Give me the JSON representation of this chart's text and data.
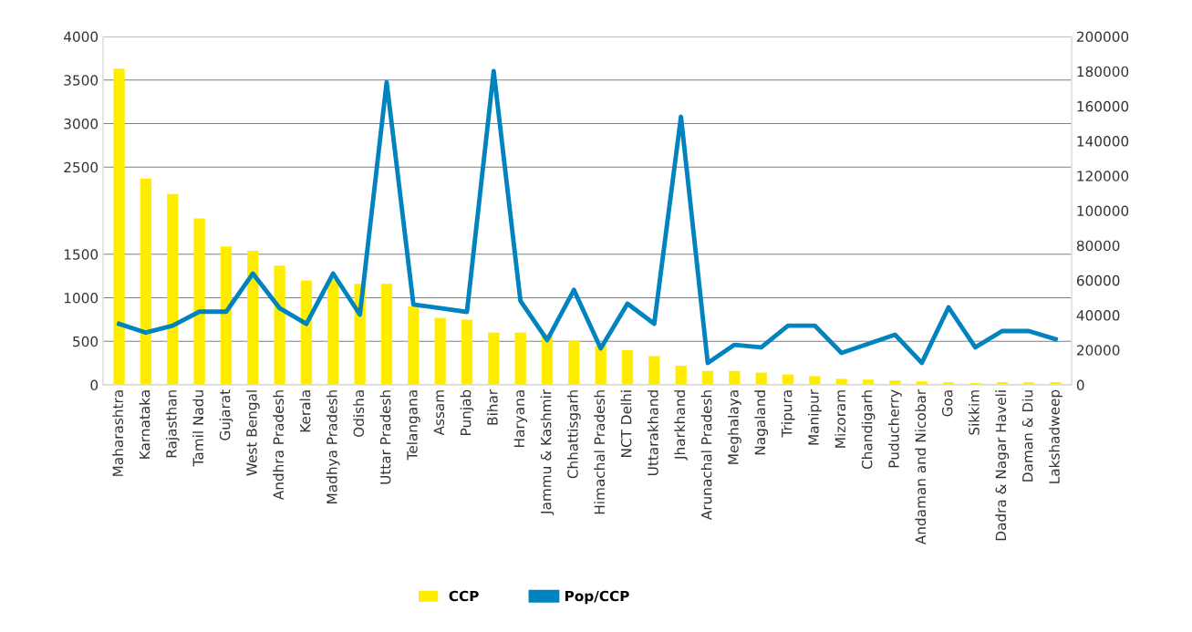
{
  "chart_data": {
    "type": "bar",
    "categories": [
      "Maharashtra",
      "Karnataka",
      "Rajasthan",
      "Tamil Nadu",
      "Gujarat",
      "West Bengal",
      "Andhra Pradesh",
      "Kerala",
      "Madhya Pradesh",
      "Odisha",
      "Uttar Pradesh",
      "Telangana",
      "Assam",
      "Punjab",
      "Bihar",
      "Haryana",
      "Jammu & Kashmir",
      "Chhattisgarh",
      "Himachal Pradesh",
      "NCT Delhi",
      "Uttarakhand",
      "Jharkhand",
      "Arunachal Pradesh",
      "Meghalaya",
      "Nagaland",
      "Tripura",
      "Manipur",
      "Mizoram",
      "Chandigarh",
      "Puducherry",
      "Andaman and Nicobar",
      "Goa",
      "Sikkim",
      "Dadra & Nagar Haveli",
      "Daman & Diu",
      "Lakshadweep"
    ],
    "series": [
      {
        "name": "CCP",
        "color": "#ffed00",
        "values": [
          3630,
          2370,
          2190,
          1910,
          1590,
          1540,
          1370,
          1200,
          1210,
          1160,
          1160,
          900,
          770,
          750,
          600,
          600,
          580,
          510,
          450,
          400,
          330,
          220,
          160,
          160,
          140,
          120,
          100,
          70,
          60,
          50,
          40,
          30,
          20,
          30,
          30,
          30
        ]
      },
      {
        "name": "Pop/CCP",
        "type": "line",
        "axis": "y2",
        "color": "#0083be",
        "values": [
          35000,
          30000,
          34000,
          42000,
          42000,
          63900,
          44000,
          35000,
          63900,
          40300,
          173800,
          46100,
          44000,
          41900,
          180100,
          48200,
          25700,
          54500,
          20900,
          46600,
          35100,
          153900,
          12600,
          23000,
          21500,
          34000,
          34000,
          18300,
          23600,
          28800,
          12600,
          44500,
          21500,
          30900,
          30900,
          26200
        ]
      }
    ],
    "ylim": [
      0,
      4000
    ],
    "yticks": [
      0,
      500,
      1000,
      1500,
      2500,
      3000,
      3500,
      4000
    ],
    "y2lim": [
      0,
      200000
    ],
    "y2ticks": [
      0,
      20000,
      40000,
      60000,
      80000,
      100000,
      120000,
      140000,
      160000,
      180000,
      200000
    ],
    "grid": "y",
    "legend": "bottom",
    "line_style": "solid",
    "marker": "none"
  }
}
